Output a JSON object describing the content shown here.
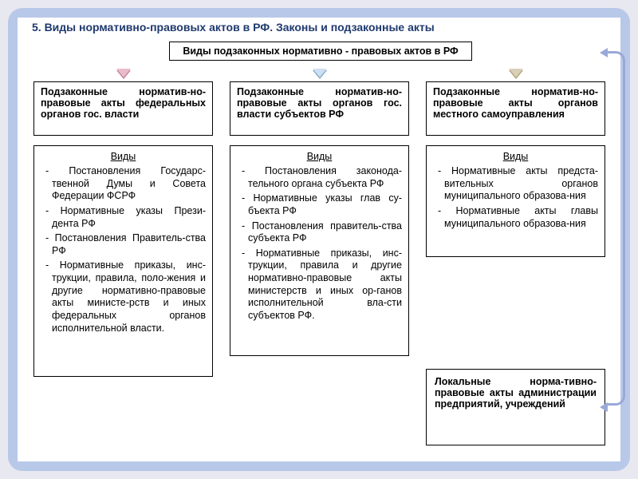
{
  "title": "5. Виды нормативно-правовых актов в РФ. Законы и подзаконные акты",
  "topBox": "Виды подзаконных нормативно - правовых актов в РФ",
  "cats": {
    "c1": "Подзаконные норматив-но-правовые акты федеральных органов гос. власти",
    "c2": "Подзаконные норматив-но-правовые акты органов гос. власти субъектов РФ",
    "c3": "Подзаконные норматив-но-правовые акты органов местного самоуправления"
  },
  "typesLabel": "Виды",
  "types1": [
    "Постановления Государс-твенной Думы и Совета Федерации ФСРФ",
    "Нормативные указы Прези-дента РФ",
    "Постановления Правитель-ства РФ",
    "Нормативные приказы, инс-трукции, правила, поло-жения и другие нормативно-правовые акты министе-рств и иных федеральных органов исполнительной власти."
  ],
  "types2": [
    "Постановления законода-тельного органа субъекта РФ",
    "Нормативные указы глав су-бъекта РФ",
    "Постановления правитель-ства субъекта РФ",
    "Нормативные приказы, инс-трукции, правила и другие нормативно-правовые акты министерств и иных ор-ганов исполнительной вла-сти субъектов РФ."
  ],
  "types3": [
    "Нормативные акты предста-вительных органов муниципального образова-ния",
    "Нормативные акты главы муниципального образова-ния"
  ],
  "localBox": "Локальные норма-тивно-правовые акты администрации предприятий, учреждений",
  "style": {
    "titleColor": "#1f3a6e",
    "titleFontSize": 14,
    "boxBorderColor": "#000000",
    "boxBg": "#ffffff",
    "bodyFontSize": 12.5,
    "catFontSize": 12.5,
    "outerBg": "#e8e8f0",
    "roundedBg": "#b8c8e8",
    "contentBg": "#ffffff",
    "connectorColor": "#9aa8d8",
    "arrow1": {
      "fill": "#e8bcc8",
      "edge": "#c47a94"
    },
    "arrow2": {
      "fill": "#cddff0",
      "edge": "#7aa8c4"
    },
    "arrow3": {
      "fill": "#d8d0b8",
      "edge": "#b0a070"
    }
  }
}
